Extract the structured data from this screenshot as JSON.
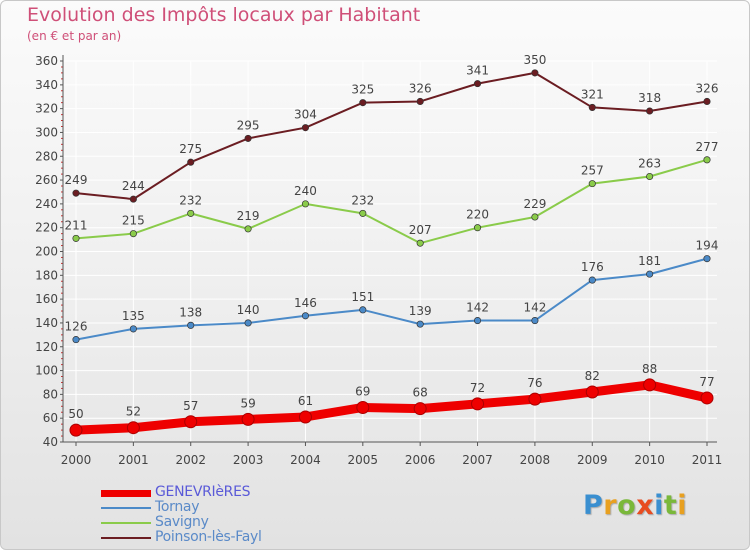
{
  "header": {
    "title": "Evolution des Impôts locaux par Habitant",
    "subtitle": "(en € et par an)"
  },
  "colors": {
    "title": "#cf4f78",
    "axis": "#555555",
    "grid": "#ffffff",
    "label": "#444444",
    "geneveries": "#ee0000",
    "tornay": "#4b8ac8",
    "savigny": "#8acb4a",
    "poinson": "#6b1d22"
  },
  "chart_data": {
    "type": "line",
    "x": [
      "2000",
      "2001",
      "2002",
      "2003",
      "2004",
      "2005",
      "2006",
      "2007",
      "2008",
      "2009",
      "2010",
      "2011"
    ],
    "ylim": [
      40,
      360
    ],
    "yticks": [
      "40",
      "60",
      "80",
      "100",
      "120",
      "140",
      "160",
      "180",
      "200",
      "220",
      "240",
      "260",
      "280",
      "300",
      "320",
      "340",
      "360"
    ],
    "grid": true,
    "series": [
      {
        "name": "GENEVRIèRES",
        "key": "geneveries",
        "values": [
          50,
          52,
          57,
          59,
          61,
          69,
          68,
          72,
          76,
          82,
          88,
          77
        ],
        "labels": [
          "50",
          "52",
          "57",
          "59",
          "61",
          "69",
          "68",
          "72",
          "76",
          "82",
          "88",
          "77"
        ]
      },
      {
        "name": "Tornay",
        "key": "tornay",
        "values": [
          126,
          135,
          138,
          140,
          146,
          151,
          139,
          142,
          142,
          176,
          181,
          194
        ],
        "labels": [
          "126",
          "135",
          "138",
          "140",
          "146",
          "151",
          "139",
          "142",
          "142",
          "176",
          "181",
          "194"
        ]
      },
      {
        "name": "Savigny",
        "key": "savigny",
        "values": [
          211,
          215,
          232,
          219,
          240,
          232,
          207,
          220,
          229,
          257,
          263,
          277
        ],
        "labels": [
          "211",
          "215",
          "232",
          "219",
          "240",
          "232",
          "207",
          "220",
          "229",
          "257",
          "263",
          "277"
        ]
      },
      {
        "name": "Poinson-lès-Fayl",
        "key": "poinson",
        "values": [
          249,
          244,
          275,
          295,
          304,
          325,
          326,
          341,
          350,
          321,
          318,
          326
        ],
        "labels": [
          "249",
          "244",
          "275",
          "295",
          "304",
          "325",
          "326",
          "341",
          "350",
          "321",
          "318",
          "326"
        ]
      }
    ],
    "legend_position": "bottom-left"
  },
  "legend": {
    "items": [
      {
        "label": "GENEVRIèRES",
        "color": "#ee0000",
        "text_color": "#5a5ad8"
      },
      {
        "label": "Tornay",
        "color": "#4b8ac8",
        "text_color": "#5a8ac8"
      },
      {
        "label": "Savigny",
        "color": "#8acb4a",
        "text_color": "#5a8ac8"
      },
      {
        "label": "Poinson-lès-Fayl",
        "color": "#6b1d22",
        "text_color": "#5a8ac8"
      }
    ]
  },
  "logo": {
    "letters": [
      "P",
      "r",
      "o",
      "x",
      "i",
      "t",
      "i"
    ],
    "letter_colors": [
      "#3a8fd0",
      "#e8a020",
      "#7ab83a",
      "#e84c20",
      "#3a8fd0",
      "#7ab83a",
      "#e8a020"
    ]
  }
}
